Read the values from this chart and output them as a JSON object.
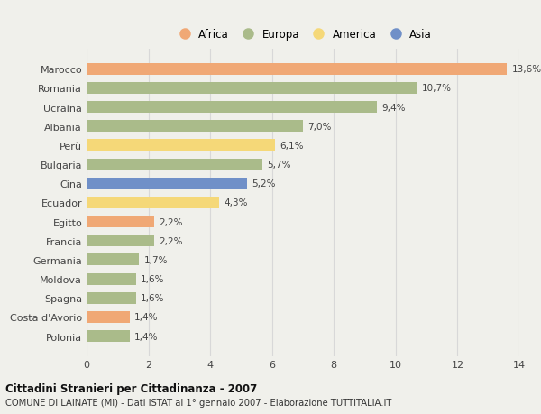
{
  "countries": [
    "Marocco",
    "Romania",
    "Ucraina",
    "Albania",
    "Perù",
    "Bulgaria",
    "Cina",
    "Ecuador",
    "Egitto",
    "Francia",
    "Germania",
    "Moldova",
    "Spagna",
    "Costa d'Avorio",
    "Polonia"
  ],
  "values": [
    13.6,
    10.7,
    9.4,
    7.0,
    6.1,
    5.7,
    5.2,
    4.3,
    2.2,
    2.2,
    1.7,
    1.6,
    1.6,
    1.4,
    1.4
  ],
  "labels": [
    "13,6%",
    "10,7%",
    "9,4%",
    "7,0%",
    "6,1%",
    "5,7%",
    "5,2%",
    "4,3%",
    "2,2%",
    "2,2%",
    "1,7%",
    "1,6%",
    "1,6%",
    "1,4%",
    "1,4%"
  ],
  "continents": [
    "Africa",
    "Europa",
    "Europa",
    "Europa",
    "America",
    "Europa",
    "Asia",
    "America",
    "Africa",
    "Europa",
    "Europa",
    "Europa",
    "Europa",
    "Africa",
    "Europa"
  ],
  "continent_colors": {
    "Africa": "#F0A875",
    "Europa": "#AABB8A",
    "America": "#F5D878",
    "Asia": "#7090C8"
  },
  "legend_order": [
    "Africa",
    "Europa",
    "America",
    "Asia"
  ],
  "xlim": [
    0,
    14
  ],
  "xticks": [
    0,
    2,
    4,
    6,
    8,
    10,
    12,
    14
  ],
  "title": "Cittadini Stranieri per Cittadinanza - 2007",
  "subtitle": "COMUNE DI LAINATE (MI) - Dati ISTAT al 1° gennaio 2007 - Elaborazione TUTTITALIA.IT",
  "background_color": "#f0f0eb",
  "grid_color": "#d8d8d8"
}
